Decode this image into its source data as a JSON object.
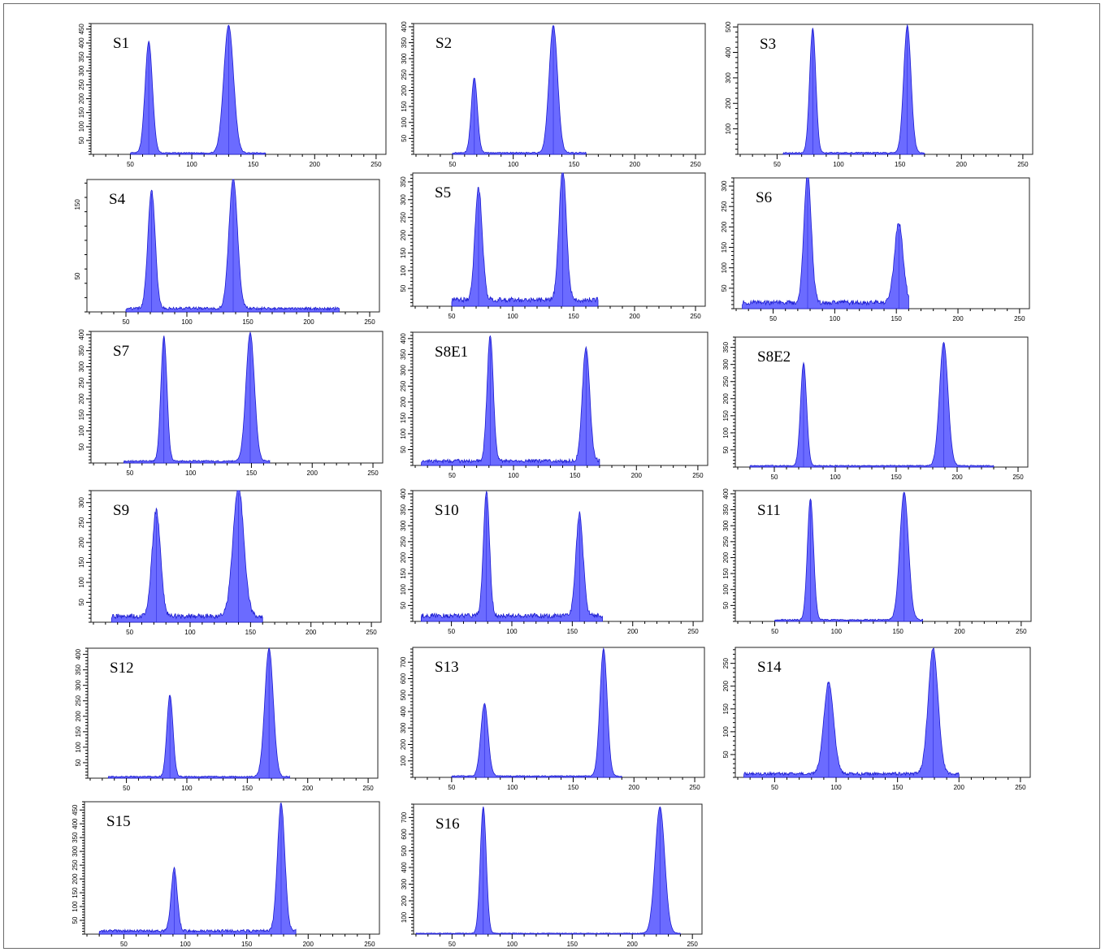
{
  "chart_data": [
    {
      "type": "area",
      "title": "S1",
      "xlim": [
        0,
        260
      ],
      "ylim": [
        0,
        470
      ],
      "xticks": [
        50,
        100,
        150,
        200,
        250
      ],
      "yticks": [
        50,
        100,
        150,
        200,
        250,
        300,
        350,
        400,
        450
      ],
      "peaks": [
        {
          "x": 65,
          "height": 400,
          "width": 3.0
        },
        {
          "x": 130,
          "height": 460,
          "width": 4.0
        }
      ],
      "baseline": 5,
      "start": 50,
      "end": 160
    },
    {
      "type": "area",
      "title": "S2",
      "xlim": [
        0,
        260
      ],
      "ylim": [
        0,
        410
      ],
      "xticks": [
        50,
        100,
        150,
        200,
        250
      ],
      "yticks": [
        50,
        100,
        150,
        200,
        250,
        300,
        350,
        400
      ],
      "peaks": [
        {
          "x": 68,
          "height": 235,
          "width": 2.5
        },
        {
          "x": 133,
          "height": 400,
          "width": 3.5
        }
      ],
      "baseline": 5,
      "start": 50,
      "end": 160
    },
    {
      "type": "area",
      "title": "S3",
      "xlim": [
        0,
        260
      ],
      "ylim": [
        0,
        510
      ],
      "xticks": [
        50,
        100,
        150,
        200,
        250
      ],
      "yticks": [
        100,
        200,
        300,
        400,
        500
      ],
      "peaks": [
        {
          "x": 79,
          "height": 490,
          "width": 2.5
        },
        {
          "x": 156,
          "height": 500,
          "width": 3.0
        }
      ],
      "baseline": 6,
      "start": 55,
      "end": 170
    },
    {
      "type": "area",
      "title": "S4",
      "xlim": [
        0,
        260
      ],
      "ylim": [
        0,
        185
      ],
      "xticks": [
        50,
        100,
        150,
        200,
        250
      ],
      "yticks": [
        50,
        150
      ],
      "peaks": [
        {
          "x": 71,
          "height": 165,
          "width": 3.0
        },
        {
          "x": 138,
          "height": 182,
          "width": 3.5
        }
      ],
      "baseline": 5,
      "start": 50,
      "end": 225
    },
    {
      "type": "area",
      "title": "S5",
      "xlim": [
        0,
        260
      ],
      "ylim": [
        0,
        375
      ],
      "xticks": [
        50,
        100,
        150,
        200,
        250
      ],
      "yticks": [
        50,
        100,
        150,
        200,
        250,
        300,
        350
      ],
      "peaks": [
        {
          "x": 72,
          "height": 315,
          "width": 3.0
        },
        {
          "x": 141,
          "height": 370,
          "width": 3.0
        }
      ],
      "baseline": 18,
      "start": 50,
      "end": 170
    },
    {
      "type": "area",
      "title": "S6",
      "xlim": [
        0,
        260
      ],
      "ylim": [
        0,
        320
      ],
      "xticks": [
        50,
        100,
        150,
        200,
        250
      ],
      "yticks": [
        50,
        100,
        150,
        200,
        250,
        300
      ],
      "peaks": [
        {
          "x": 78,
          "height": 315,
          "width": 3.0
        },
        {
          "x": 152,
          "height": 195,
          "width": 3.5
        }
      ],
      "baseline": 15,
      "start": 25,
      "end": 160
    },
    {
      "type": "area",
      "title": "S7",
      "xlim": [
        0,
        260
      ],
      "ylim": [
        0,
        410
      ],
      "xticks": [
        50,
        100,
        150,
        200,
        250
      ],
      "yticks": [
        50,
        100,
        150,
        200,
        250,
        300,
        350,
        400
      ],
      "peaks": [
        {
          "x": 78,
          "height": 390,
          "width": 2.5
        },
        {
          "x": 149,
          "height": 400,
          "width": 3.5
        }
      ],
      "baseline": 6,
      "start": 45,
      "end": 165
    },
    {
      "type": "area",
      "title": "S8E1",
      "xlim": [
        0,
        260
      ],
      "ylim": [
        0,
        420
      ],
      "xticks": [
        50,
        100,
        150,
        200,
        250
      ],
      "yticks": [
        50,
        100,
        150,
        200,
        250,
        300,
        350,
        400
      ],
      "peaks": [
        {
          "x": 81,
          "height": 400,
          "width": 2.5
        },
        {
          "x": 159,
          "height": 360,
          "width": 3.0
        }
      ],
      "baseline": 14,
      "start": 25,
      "end": 170
    },
    {
      "type": "area",
      "title": "S8E2",
      "xlim": [
        0,
        260
      ],
      "ylim": [
        0,
        380
      ],
      "xticks": [
        50,
        100,
        150,
        200,
        250
      ],
      "yticks": [
        50,
        100,
        150,
        200,
        250,
        300,
        350
      ],
      "peaks": [
        {
          "x": 74,
          "height": 300,
          "width": 2.5
        },
        {
          "x": 189,
          "height": 360,
          "width": 3.5
        }
      ],
      "baseline": 4,
      "start": 30,
      "end": 230
    },
    {
      "type": "area",
      "title": "S9",
      "xlim": [
        0,
        260
      ],
      "ylim": [
        0,
        330
      ],
      "xticks": [
        50,
        100,
        150,
        200,
        250
      ],
      "yticks": [
        50,
        100,
        150,
        200,
        250,
        300
      ],
      "peaks": [
        {
          "x": 72,
          "height": 265,
          "width": 3.5
        },
        {
          "x": 140,
          "height": 325,
          "width": 4.5
        }
      ],
      "baseline": 15,
      "start": 35,
      "end": 160
    },
    {
      "type": "area",
      "title": "S10",
      "xlim": [
        0,
        260
      ],
      "ylim": [
        0,
        410
      ],
      "xticks": [
        50,
        100,
        150,
        200,
        250
      ],
      "yticks": [
        50,
        100,
        150,
        200,
        250,
        300,
        350,
        400
      ],
      "peaks": [
        {
          "x": 79,
          "height": 390,
          "width": 2.5
        },
        {
          "x": 156,
          "height": 320,
          "width": 3.0
        }
      ],
      "baseline": 18,
      "start": 25,
      "end": 175
    },
    {
      "type": "area",
      "title": "S11",
      "xlim": [
        0,
        260
      ],
      "ylim": [
        0,
        410
      ],
      "xticks": [
        50,
        100,
        150,
        200,
        250
      ],
      "yticks": [
        50,
        100,
        150,
        200,
        250,
        300,
        350,
        400
      ],
      "peaks": [
        {
          "x": 79,
          "height": 380,
          "width": 2.5
        },
        {
          "x": 155,
          "height": 400,
          "width": 3.5
        }
      ],
      "baseline": 5,
      "start": 50,
      "end": 170
    },
    {
      "type": "area",
      "title": "S12",
      "xlim": [
        0,
        260
      ],
      "ylim": [
        0,
        420
      ],
      "xticks": [
        50,
        100,
        150,
        200,
        250
      ],
      "yticks": [
        50,
        100,
        150,
        200,
        250,
        300,
        350,
        400
      ],
      "peaks": [
        {
          "x": 86,
          "height": 265,
          "width": 2.5
        },
        {
          "x": 168,
          "height": 415,
          "width": 3.5
        }
      ],
      "baseline": 5,
      "start": 35,
      "end": 185
    },
    {
      "type": "area",
      "title": "S13",
      "xlim": [
        0,
        260
      ],
      "ylim": [
        0,
        790
      ],
      "xticks": [
        50,
        100,
        150,
        200,
        250
      ],
      "yticks": [
        100,
        200,
        300,
        400,
        500,
        600,
        700
      ],
      "peaks": [
        {
          "x": 77,
          "height": 440,
          "width": 3.0
        },
        {
          "x": 175,
          "height": 775,
          "width": 3.0
        }
      ],
      "baseline": 8,
      "start": 50,
      "end": 190
    },
    {
      "type": "area",
      "title": "S14",
      "xlim": [
        0,
        260
      ],
      "ylim": [
        0,
        285
      ],
      "xticks": [
        50,
        100,
        150,
        200,
        250
      ],
      "yticks": [
        50,
        100,
        150,
        200,
        250
      ],
      "peaks": [
        {
          "x": 94,
          "height": 200,
          "width": 4.0
        },
        {
          "x": 179,
          "height": 275,
          "width": 4.0
        }
      ],
      "baseline": 8,
      "start": 25,
      "end": 200
    },
    {
      "type": "area",
      "title": "S15",
      "xlim": [
        0,
        260
      ],
      "ylim": [
        0,
        480
      ],
      "xticks": [
        50,
        100,
        150,
        200,
        250
      ],
      "yticks": [
        50,
        100,
        150,
        200,
        250,
        300,
        350,
        400,
        450
      ],
      "peaks": [
        {
          "x": 91,
          "height": 225,
          "width": 2.5
        },
        {
          "x": 178,
          "height": 465,
          "width": 3.0
        }
      ],
      "baseline": 12,
      "start": 30,
      "end": 190
    },
    {
      "type": "area",
      "title": "S16",
      "xlim": [
        0,
        260
      ],
      "ylim": [
        0,
        780
      ],
      "xticks": [
        50,
        100,
        150,
        200,
        250
      ],
      "yticks": [
        100,
        200,
        300,
        400,
        500,
        600,
        700
      ],
      "peaks": [
        {
          "x": 76,
          "height": 760,
          "width": 2.5
        },
        {
          "x": 223,
          "height": 760,
          "width": 4.0
        }
      ],
      "baseline": 5,
      "start": 20,
      "end": 240
    }
  ]
}
